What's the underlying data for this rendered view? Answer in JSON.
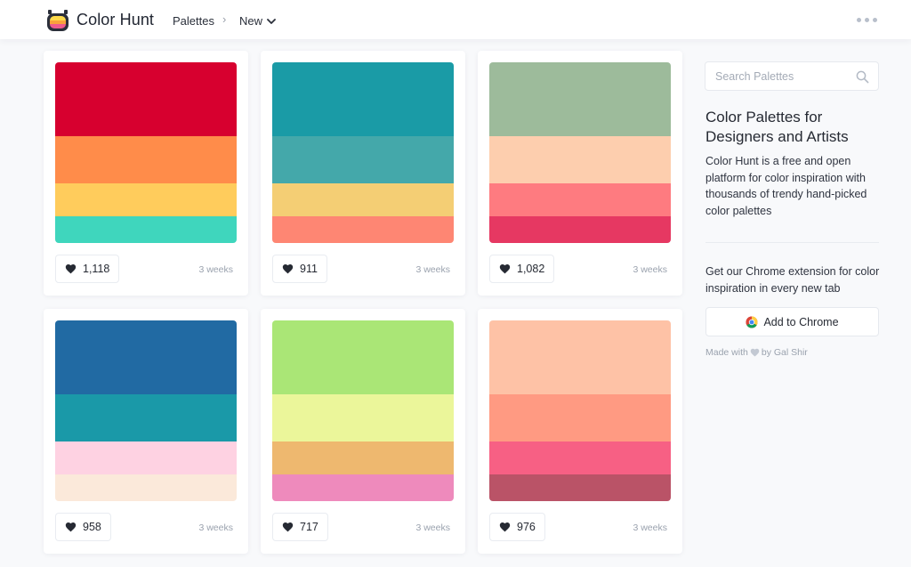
{
  "header": {
    "brand": "Color Hunt",
    "nav_palettes": "Palettes",
    "nav_separator": "›",
    "nav_sort": "New"
  },
  "palettes": [
    {
      "colors": [
        "#d7002f",
        "#ff8c4a",
        "#ffcc5c",
        "#3fd6bd"
      ],
      "likes": "1,118",
      "time": "3 weeks"
    },
    {
      "colors": [
        "#1a9ba6",
        "#44a8aa",
        "#f4ce74",
        "#fe8673"
      ],
      "likes": "911",
      "time": "3 weeks"
    },
    {
      "colors": [
        "#9dbb9b",
        "#fdceae",
        "#fe7b80",
        "#e63862"
      ],
      "likes": "1,082",
      "time": "3 weeks"
    },
    {
      "colors": [
        "#216aa3",
        "#1a99a8",
        "#fed2e2",
        "#fbe9da"
      ],
      "likes": "958",
      "time": "3 weeks"
    },
    {
      "colors": [
        "#aae676",
        "#ebf69a",
        "#eeb86f",
        "#ee8abc"
      ],
      "likes": "717",
      "time": "3 weeks"
    },
    {
      "colors": [
        "#fec2a6",
        "#ff9a82",
        "#f76084",
        "#ba5367"
      ],
      "likes": "976",
      "time": "3 weeks"
    }
  ],
  "sidebar": {
    "search_placeholder": "Search Palettes",
    "title": "Color Palettes for Designers and Artists",
    "description": "Color Hunt is a free and open platform for color inspiration with thousands of trendy hand-picked color palettes",
    "extension_text": "Get our Chrome extension for color inspiration in every new tab",
    "chrome_button": "Add to Chrome",
    "made_with_prefix": "Made with",
    "made_with_suffix": "by Gal Shir"
  }
}
